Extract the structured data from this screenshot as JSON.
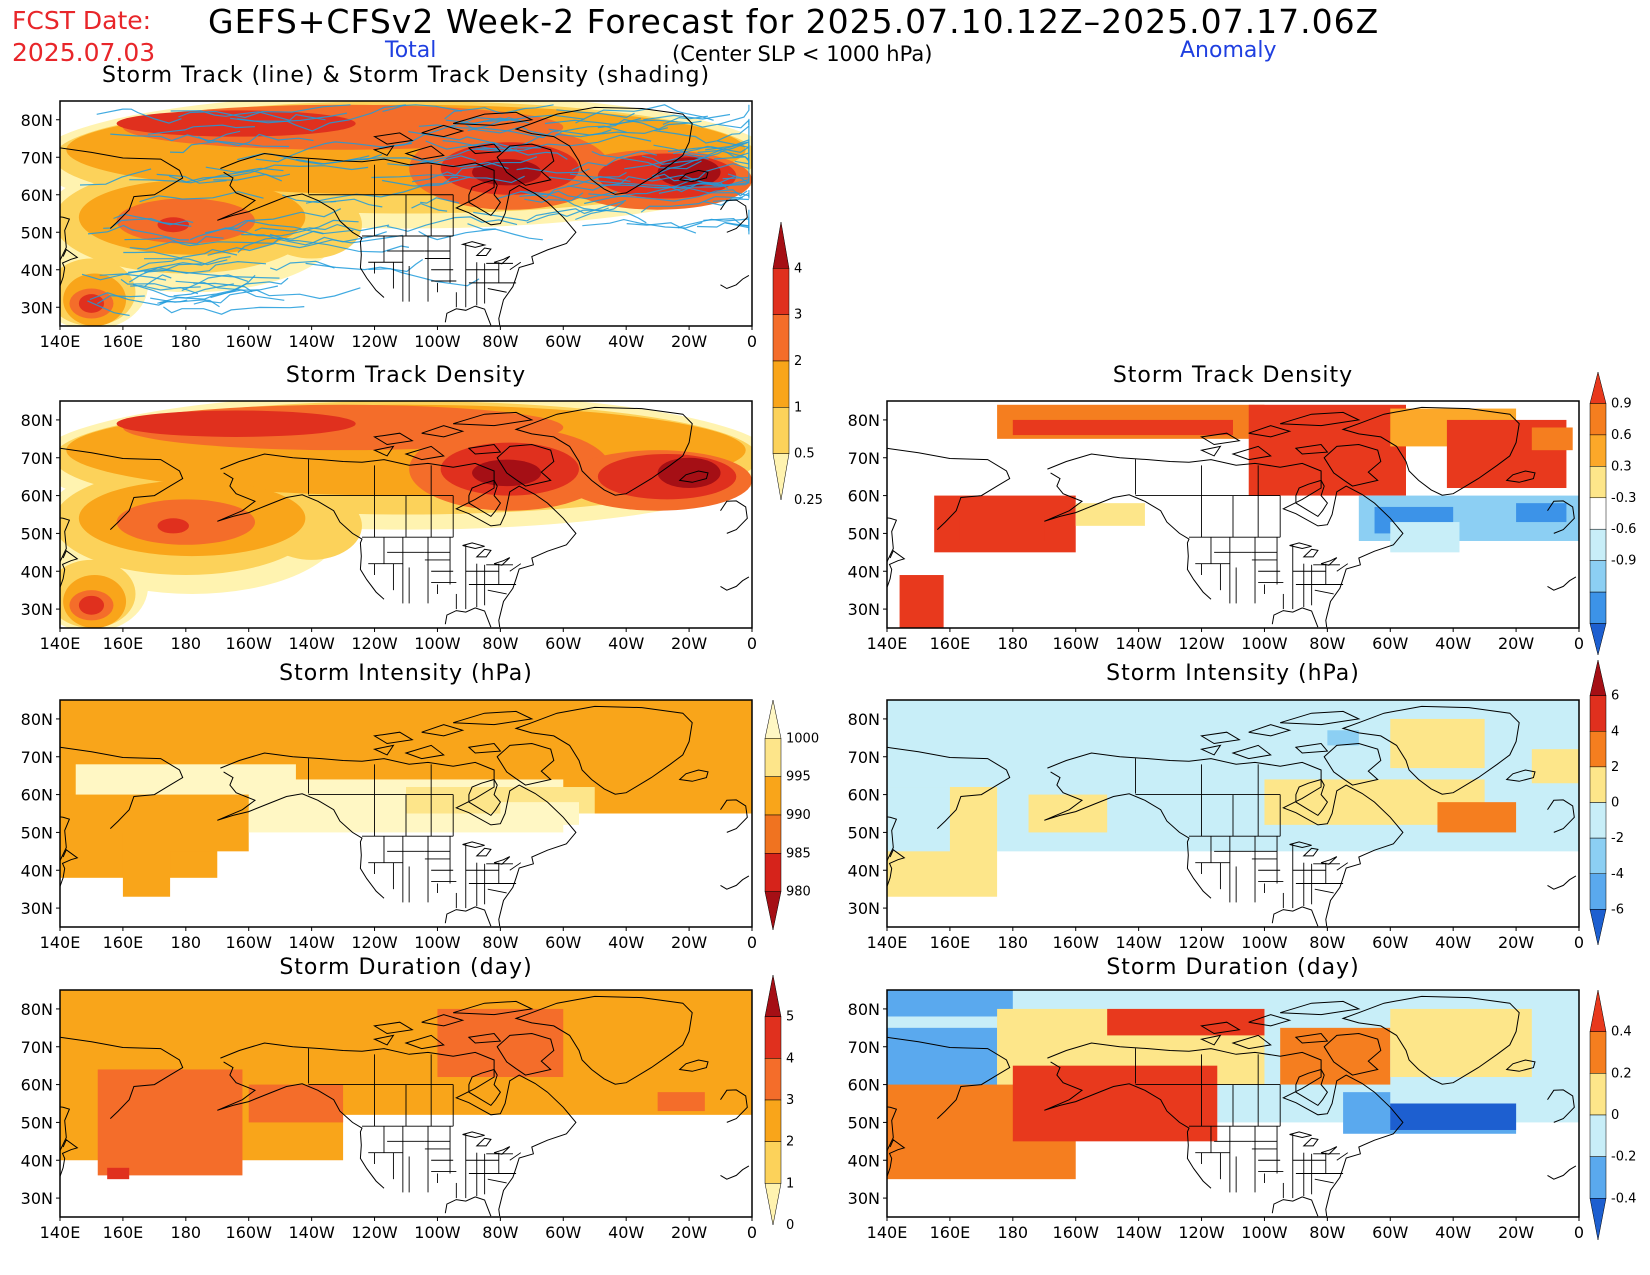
{
  "header": {
    "fcst_label": "FCST Date:",
    "fcst_date": "2025.07.03",
    "title": "GEFS+CFSv2 Week-2 Forecast for 2025.07.10.12Z–2025.07.17.06Z",
    "subtitle": "(Center SLP < 1000 hPa)",
    "total_label": "Total",
    "anomaly_label": "Anomaly"
  },
  "axes": {
    "lon_labels": [
      "140E",
      "160E",
      "180",
      "160W",
      "140W",
      "120W",
      "100W",
      "80W",
      "60W",
      "40W",
      "20W",
      "0"
    ],
    "lat_labels": [
      "80N",
      "70N",
      "60N",
      "50N",
      "40N",
      "30N"
    ]
  },
  "panels": [
    {
      "id": "track-total",
      "title": "Storm Track (line) & Storm Track Density (shading)",
      "kind": "total-track"
    },
    {
      "id": "density-total",
      "title": "Storm Track Density",
      "kind": "total-density"
    },
    {
      "id": "density-anom",
      "title": "Storm Track Density",
      "kind": "anom-density"
    },
    {
      "id": "intensity-total",
      "title": "Storm Intensity (hPa)",
      "kind": "total-intensity"
    },
    {
      "id": "intensity-anom",
      "title": "Storm Intensity (hPa)",
      "kind": "anom-intensity"
    },
    {
      "id": "duration-total",
      "title": "Storm Duration (day)",
      "kind": "total-duration"
    },
    {
      "id": "duration-anom",
      "title": "Storm Duration (day)",
      "kind": "anom-duration"
    }
  ],
  "colorbars": {
    "density_total": {
      "labels": [
        "4",
        "3",
        "2",
        "1",
        "0.5",
        "0.25"
      ],
      "colors": [
        "#a50f15",
        "#e0301e",
        "#f46d2a",
        "#f9a51a",
        "#fcd25a",
        "#fff3b0"
      ]
    },
    "density_anom": {
      "labels": [
        "0.9",
        "0.6",
        "0.3",
        "-0.3",
        "-0.6",
        "-0.9"
      ],
      "colors": [
        "#e8391d",
        "#f57e1f",
        "#fca829",
        "#fde68a",
        "#ffffff",
        "#c8eef8",
        "#8ccff3",
        "#3c93e8",
        "#1d5fd0"
      ]
    },
    "intensity_total": {
      "labels": [
        "1000",
        "995",
        "990",
        "985",
        "980"
      ],
      "colors": [
        "#fff7c4",
        "#fde58a",
        "#f9a51a",
        "#f07320",
        "#d6231b",
        "#a50f15"
      ]
    },
    "intensity_anom": {
      "labels": [
        "6",
        "4",
        "2",
        "0",
        "-2",
        "-4",
        "-6"
      ],
      "colors": [
        "#a50f15",
        "#e0301e",
        "#f57e1f",
        "#fde68a",
        "#c8eef8",
        "#8ccff3",
        "#5aa9ee",
        "#1d5fd0"
      ]
    },
    "duration_total": {
      "labels": [
        "5",
        "4",
        "3",
        "2",
        "1",
        "0"
      ],
      "colors": [
        "#a50f15",
        "#e0301e",
        "#f46d2a",
        "#f9a51a",
        "#fcd25a",
        "#fff3b0"
      ]
    },
    "duration_anom": {
      "labels": [
        "0.4",
        "0.2",
        "0",
        "-0.2",
        "-0.4"
      ],
      "colors": [
        "#e8391d",
        "#f57e1f",
        "#fde68a",
        "#c8eef8",
        "#5aa9ee",
        "#1d5fd0"
      ]
    }
  }
}
